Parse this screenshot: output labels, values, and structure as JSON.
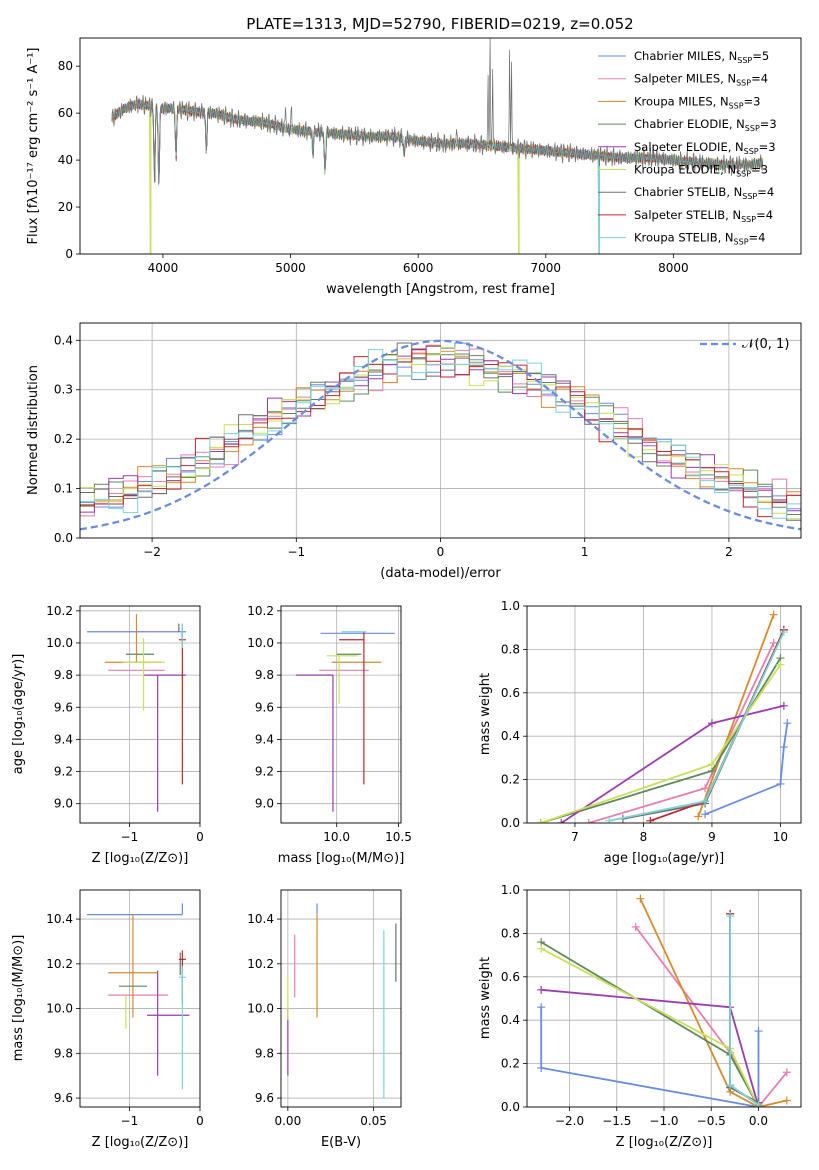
{
  "figure_title": "PLATE=1313, MJD=52790, FIBERID=0219, z=0.052",
  "colors": [
    "#6a8cde",
    "#e87db0",
    "#d98a2a",
    "#5e8a5a",
    "#9a3cb0",
    "#c8e05a",
    "#6e6e6e",
    "#c0272d",
    "#78d4d8"
  ],
  "chart_data": [
    {
      "id": "spectrum",
      "type": "line",
      "title": "PLATE=1313, MJD=52790, FIBERID=0219, z=0.052",
      "xlabel": "wavelength [Angstrom, rest frame]",
      "ylabel": "Flux [fλ10⁻¹⁷ erg cm⁻² s⁻¹ A⁻¹]",
      "xlim": [
        3350,
        9000
      ],
      "ylim": [
        0,
        92
      ],
      "xticks": [
        4000,
        5000,
        6000,
        7000,
        8000
      ],
      "yticks": [
        0,
        20,
        40,
        60,
        80
      ],
      "grid": false,
      "legend_position": "top-right",
      "legend": [
        {
          "main": "Chabrier MILES, N",
          "sub": "SSP",
          "tail": "=5"
        },
        {
          "main": "Salpeter MILES, N",
          "sub": "SSP",
          "tail": "=4"
        },
        {
          "main": "Kroupa MILES, N",
          "sub": "SSP",
          "tail": "=3"
        },
        {
          "main": "Chabrier ELODIE, N",
          "sub": "SSP",
          "tail": "=3"
        },
        {
          "main": "Salpeter ELODIE, N",
          "sub": "SSP",
          "tail": "=3"
        },
        {
          "main": "Kroupa ELODIE, N",
          "sub": "SSP",
          "tail": "=3"
        },
        {
          "main": "Chabrier STELIB, N",
          "sub": "SSP",
          "tail": "=4"
        },
        {
          "main": "Salpeter STELIB, N",
          "sub": "SSP",
          "tail": "=4"
        },
        {
          "main": "Kroupa STELIB, N",
          "sub": "SSP",
          "tail": "=4"
        }
      ],
      "continuum": {
        "x": [
          3600,
          3700,
          3800,
          3900,
          4000,
          4100,
          4200,
          4400,
          4600,
          4800,
          5000,
          5200,
          5400,
          5600,
          5800,
          6000,
          6200,
          6400,
          6600,
          6800,
          7000,
          7200,
          7400,
          7600,
          7800,
          8000,
          8200,
          8400,
          8600,
          8700
        ],
        "y": [
          58,
          62,
          64,
          63,
          62,
          62,
          61,
          60,
          57,
          56,
          53,
          52,
          51,
          50,
          50,
          48,
          47,
          47,
          46,
          45,
          44,
          43,
          42,
          41,
          41,
          40,
          39,
          38,
          38,
          39
        ]
      },
      "dips": [
        {
          "x": 3934,
          "y": 30
        },
        {
          "x": 3968,
          "y": 28
        },
        {
          "x": 4102,
          "y": 40
        },
        {
          "x": 4340,
          "y": 43
        },
        {
          "x": 5175,
          "y": 43
        },
        {
          "x": 5270,
          "y": 33
        },
        {
          "x": 5890,
          "y": 42
        }
      ],
      "spikes": [
        {
          "x": 4960,
          "y": 64
        },
        {
          "x": 5007,
          "y": 66
        },
        {
          "x": 6300,
          "y": 55
        },
        {
          "x": 6548,
          "y": 74
        },
        {
          "x": 6563,
          "y": 92
        },
        {
          "x": 6584,
          "y": 80
        },
        {
          "x": 6717,
          "y": 88
        },
        {
          "x": 6731,
          "y": 80
        }
      ],
      "model_cutoffs": [
        {
          "series": 5,
          "x": 3905
        },
        {
          "series": 5,
          "x": 6790
        },
        {
          "series": 2,
          "x": 7420
        },
        {
          "series": 8,
          "x": 7420
        }
      ]
    },
    {
      "id": "residuals",
      "type": "histogram",
      "xlabel": "(data-model)/error",
      "ylabel": "Normed distribution",
      "xlim": [
        -2.5,
        2.5
      ],
      "ylim": [
        0,
        0.435
      ],
      "xticks": [
        -2,
        -1,
        0,
        1,
        2
      ],
      "yticks": [
        0.0,
        0.1,
        0.2,
        0.3,
        0.4
      ],
      "grid": true,
      "legend_position": "top-right",
      "reference_label": "𝒩(0, 1)",
      "bin_width": 0.1
    },
    {
      "id": "age-vs-z",
      "type": "scatter",
      "xlabel": "Z [log₁₀(Z/Z⊙)]",
      "ylabel": "age  [log₁₀(age/yr)]",
      "xlim": [
        -1.7,
        0.0
      ],
      "ylim": [
        8.88,
        10.23
      ],
      "xticks": [
        -1,
        0
      ],
      "yticks": [
        9.0,
        9.2,
        9.4,
        9.6,
        9.8,
        10.0,
        10.2
      ],
      "grid": true,
      "points": [
        {
          "s": 0,
          "x": -0.25,
          "y": 10.07,
          "xerr": [
            1.35,
            0.05
          ],
          "yerr": [
            0.05,
            0.05
          ]
        },
        {
          "s": 1,
          "x": -0.85,
          "y": 9.83,
          "xerr": [
            0.45,
            0.35
          ],
          "yerr": [
            0.0,
            0.0
          ]
        },
        {
          "s": 2,
          "x": -0.9,
          "y": 9.88,
          "xerr": [
            0.45,
            0.35
          ],
          "yerr": [
            0.0,
            0.3
          ]
        },
        {
          "s": 3,
          "x": -0.85,
          "y": 9.93,
          "xerr": [
            0.2,
            0.2
          ],
          "yerr": [
            0.0,
            0.0
          ]
        },
        {
          "s": 4,
          "x": -0.6,
          "y": 9.8,
          "xerr": [
            0.2,
            0.4
          ],
          "yerr": [
            0.85,
            0.0
          ]
        },
        {
          "s": 5,
          "x": -0.8,
          "y": 9.88,
          "xerr": [
            0.3,
            0.3
          ],
          "yerr": [
            0.3,
            0.15
          ]
        },
        {
          "s": 6,
          "x": -0.3,
          "y": 10.07,
          "xerr": [
            0.0,
            0.0
          ],
          "yerr": [
            0.0,
            0.05
          ]
        },
        {
          "s": 7,
          "x": -0.25,
          "y": 10.02,
          "xerr": [
            0.05,
            0.05
          ],
          "yerr": [
            0.9,
            0.05
          ]
        },
        {
          "s": 8,
          "x": -0.25,
          "y": 10.07,
          "xerr": [
            0.0,
            0.0
          ],
          "yerr": [
            0.1,
            0.05
          ]
        }
      ]
    },
    {
      "id": "age-vs-mass",
      "type": "scatter",
      "xlabel": "mass [log₁₀(M/M⊙)]",
      "ylabel": "",
      "xlim": [
        9.55,
        10.52
      ],
      "ylim": [
        8.88,
        10.23
      ],
      "xticks": [
        10.0,
        10.5
      ],
      "yticks": [
        9.0,
        9.2,
        9.4,
        9.6,
        9.8,
        10.0,
        10.2
      ],
      "grid": true,
      "points": [
        {
          "s": 0,
          "x": 10.42,
          "y": 10.06,
          "xerr": [
            0.55,
            0.05
          ],
          "yerr": [
            0.0,
            0.0
          ]
        },
        {
          "s": 1,
          "x": 10.06,
          "y": 9.83,
          "xerr": [
            0.2,
            0.2
          ],
          "yerr": [
            0.0,
            0.0
          ]
        },
        {
          "s": 2,
          "x": 10.16,
          "y": 9.88,
          "xerr": [
            0.2,
            0.2
          ],
          "yerr": [
            0.0,
            0.0
          ]
        },
        {
          "s": 3,
          "x": 10.1,
          "y": 9.93,
          "xerr": [
            0.1,
            0.1
          ],
          "yerr": [
            0.0,
            0.0
          ]
        },
        {
          "s": 4,
          "x": 9.97,
          "y": 9.8,
          "xerr": [
            0.3,
            0.0
          ],
          "yerr": [
            0.85,
            0.0
          ]
        },
        {
          "s": 5,
          "x": 10.02,
          "y": 9.92,
          "xerr": [
            0.1,
            0.15
          ],
          "yerr": [
            0.3,
            0.0
          ]
        },
        {
          "s": 6,
          "x": 10.38,
          "y": 10.07,
          "xerr": [
            0.0,
            0.0
          ],
          "yerr": [
            0.0,
            0.0
          ]
        },
        {
          "s": 7,
          "x": 10.22,
          "y": 10.02,
          "xerr": [
            0.2,
            0.0
          ],
          "yerr": [
            0.9,
            0.05
          ]
        },
        {
          "s": 8,
          "x": 10.14,
          "y": 10.07,
          "xerr": [
            0.1,
            0.1
          ],
          "yerr": [
            0.0,
            0.0
          ]
        }
      ]
    },
    {
      "id": "weight-vs-age",
      "type": "line",
      "xlabel": "age  [log₁₀(age/yr)]",
      "ylabel": "mass weight",
      "xlim": [
        6.3,
        10.3
      ],
      "ylim": [
        0,
        1.0
      ],
      "xticks": [
        7,
        8,
        9,
        10
      ],
      "yticks": [
        0.0,
        0.2,
        0.4,
        0.6,
        0.8,
        1.0
      ],
      "grid": true,
      "series": [
        {
          "s": 0,
          "x": [
            8.9,
            10.0,
            10.05,
            10.1
          ],
          "y": [
            0.04,
            0.18,
            0.35,
            0.46
          ]
        },
        {
          "s": 1,
          "x": [
            7.2,
            8.9,
            9.9
          ],
          "y": [
            0.0,
            0.16,
            0.83
          ]
        },
        {
          "s": 2,
          "x": [
            8.8,
            9.9
          ],
          "y": [
            0.03,
            0.96
          ]
        },
        {
          "s": 3,
          "x": [
            6.5,
            9.0,
            10.0
          ],
          "y": [
            0.0,
            0.24,
            0.76
          ]
        },
        {
          "s": 4,
          "x": [
            6.8,
            9.0,
            10.05
          ],
          "y": [
            0.0,
            0.46,
            0.54
          ]
        },
        {
          "s": 5,
          "x": [
            6.5,
            9.0,
            10.0
          ],
          "y": [
            0.0,
            0.27,
            0.73
          ]
        },
        {
          "s": 6,
          "x": [
            7.7,
            8.9,
            10.05
          ],
          "y": [
            0.02,
            0.09,
            0.89
          ]
        },
        {
          "s": 7,
          "x": [
            8.1,
            8.9,
            10.05
          ],
          "y": [
            0.01,
            0.1,
            0.89
          ]
        },
        {
          "s": 8,
          "x": [
            7.5,
            8.9,
            10.05
          ],
          "y": [
            0.01,
            0.1,
            0.88
          ]
        }
      ]
    },
    {
      "id": "mass-vs-z",
      "type": "scatter",
      "xlabel": "Z [log₁₀(Z/Z⊙)]",
      "ylabel": "mass [log₁₀(M/M⊙)]",
      "xlim": [
        -1.7,
        0.0
      ],
      "ylim": [
        9.56,
        10.53
      ],
      "xticks": [
        -1,
        0
      ],
      "yticks": [
        9.6,
        9.8,
        10.0,
        10.2,
        10.4
      ],
      "grid": true,
      "points": [
        {
          "s": 0,
          "x": -0.25,
          "y": 10.42,
          "xerr": [
            1.35,
            0.0
          ],
          "yerr": [
            0.0,
            0.05
          ]
        },
        {
          "s": 1,
          "x": -0.75,
          "y": 10.06,
          "xerr": [
            0.55,
            0.3
          ],
          "yerr": [
            0.0,
            0.0
          ]
        },
        {
          "s": 2,
          "x": -0.95,
          "y": 10.16,
          "xerr": [
            0.35,
            0.35
          ],
          "yerr": [
            0.2,
            0.26
          ]
        },
        {
          "s": 3,
          "x": -0.95,
          "y": 10.1,
          "xerr": [
            0.2,
            0.2
          ],
          "yerr": [
            0.0,
            0.0
          ]
        },
        {
          "s": 4,
          "x": -0.6,
          "y": 9.97,
          "xerr": [
            0.15,
            0.45
          ],
          "yerr": [
            0.27,
            0.2
          ]
        },
        {
          "s": 5,
          "x": -1.05,
          "y": 10.0,
          "xerr": [
            0.0,
            0.0
          ],
          "yerr": [
            0.09,
            0.06
          ]
        },
        {
          "s": 6,
          "x": -0.28,
          "y": 10.15,
          "xerr": [
            0.0,
            0.0
          ],
          "yerr": [
            0.0,
            0.1
          ]
        },
        {
          "s": 7,
          "x": -0.25,
          "y": 10.22,
          "xerr": [
            0.05,
            0.05
          ],
          "yerr": [
            0.2,
            0.04
          ]
        },
        {
          "s": 8,
          "x": -0.25,
          "y": 10.14,
          "xerr": [
            0.05,
            0.05
          ],
          "yerr": [
            0.5,
            0.05
          ]
        }
      ]
    },
    {
      "id": "mass-vs-ebv",
      "type": "scatter",
      "xlabel": "E(B-V)",
      "ylabel": "",
      "xlim": [
        -0.004,
        0.066
      ],
      "ylim": [
        9.56,
        10.53
      ],
      "xticks": [
        0.0,
        0.05
      ],
      "yticks": [
        9.6,
        9.8,
        10.0,
        10.2,
        10.4
      ],
      "grid": true,
      "points": [
        {
          "s": 0,
          "x": 0.017,
          "y": 10.42,
          "xerr": [
            0.0,
            0.0
          ],
          "yerr": [
            0.0,
            0.05
          ]
        },
        {
          "s": 1,
          "x": 0.004,
          "y": 10.2,
          "xerr": [
            0.0,
            0.0
          ],
          "yerr": [
            0.15,
            0.13
          ]
        },
        {
          "s": 2,
          "x": 0.017,
          "y": 10.16,
          "xerr": [
            0.0,
            0.0
          ],
          "yerr": [
            0.2,
            0.26
          ]
        },
        {
          "s": 4,
          "x": 0.0,
          "y": 9.85,
          "xerr": [
            0.0,
            0.0
          ],
          "yerr": [
            0.15,
            0.15
          ]
        },
        {
          "s": 5,
          "x": 0.0,
          "y": 10.05,
          "xerr": [
            0.0,
            0.0
          ],
          "yerr": [
            0.1,
            0.1
          ]
        },
        {
          "s": 6,
          "x": 0.063,
          "y": 10.25,
          "xerr": [
            0.0,
            0.0
          ],
          "yerr": [
            0.13,
            0.13
          ]
        },
        {
          "s": 8,
          "x": 0.056,
          "y": 10.0,
          "xerr": [
            0.0,
            0.0
          ],
          "yerr": [
            0.4,
            0.35
          ]
        }
      ]
    },
    {
      "id": "weight-vs-z",
      "type": "line",
      "xlabel": "Z [log₁₀(Z/Z⊙)]",
      "ylabel": "mass weight",
      "xlim": [
        -2.45,
        0.45
      ],
      "ylim": [
        0,
        1.0
      ],
      "xticks": [
        -2.0,
        -1.5,
        -1.0,
        -0.5,
        0.0
      ],
      "yticks": [
        0.0,
        0.2,
        0.4,
        0.6,
        0.8,
        1.0
      ],
      "grid": true,
      "series": [
        {
          "s": 0,
          "x": [
            -2.3,
            -2.3,
            0.0,
            0.0
          ],
          "y": [
            0.46,
            0.18,
            0.0,
            0.35
          ]
        },
        {
          "s": 1,
          "x": [
            -1.3,
            -0.3,
            0.0,
            0.3
          ],
          "y": [
            0.83,
            0.25,
            0.0,
            0.16
          ]
        },
        {
          "s": 2,
          "x": [
            -1.25,
            -0.3,
            0.0,
            0.3
          ],
          "y": [
            0.96,
            0.07,
            0.0,
            0.03
          ]
        },
        {
          "s": 3,
          "x": [
            -2.3,
            -0.3,
            0.0
          ],
          "y": [
            0.76,
            0.24,
            0.0
          ]
        },
        {
          "s": 4,
          "x": [
            -2.3,
            -0.3,
            0.0
          ],
          "y": [
            0.54,
            0.46,
            0.0
          ]
        },
        {
          "s": 5,
          "x": [
            -2.3,
            -0.3,
            0.0
          ],
          "y": [
            0.73,
            0.27,
            0.0
          ]
        },
        {
          "s": 6,
          "x": [
            -0.3,
            -0.3,
            0.0
          ],
          "y": [
            0.89,
            0.09,
            0.02
          ]
        },
        {
          "s": 7,
          "x": [
            -0.3,
            -0.3,
            0.0
          ],
          "y": [
            0.89,
            0.1,
            0.01
          ]
        },
        {
          "s": 8,
          "x": [
            -0.3,
            -0.3,
            0.0
          ],
          "y": [
            0.88,
            0.1,
            0.01
          ]
        }
      ]
    }
  ]
}
